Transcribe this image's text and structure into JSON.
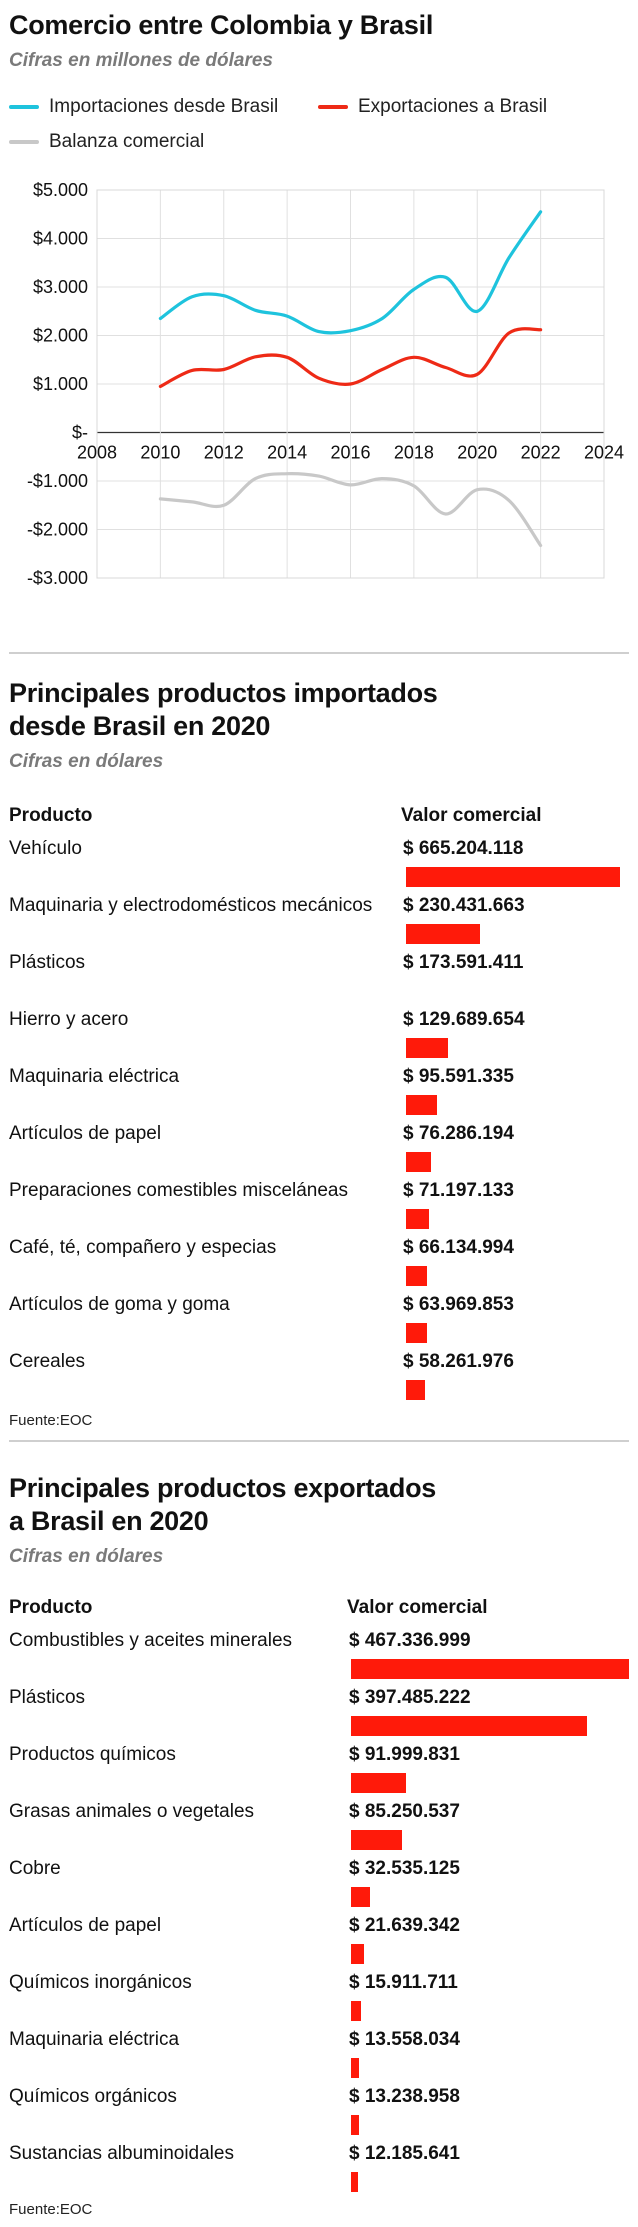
{
  "section1": {
    "title": "Comercio entre Colombia y Brasil",
    "subtitle": "Cifras en millones de dólares",
    "legend": [
      {
        "label": "Importaciones desde Brasil",
        "color": "#1ec3dd"
      },
      {
        "label": "Exportaciones a Brasil",
        "color": "#ee2a16"
      },
      {
        "label": "Balanza comercial",
        "color": "#c8c8c8"
      }
    ]
  },
  "chart_data": [
    {
      "type": "line",
      "title": "Comercio entre Colombia y Brasil",
      "subtitle": "Cifras en millones de dólares",
      "xlabel": "",
      "ylabel": "",
      "xlim": [
        2008,
        2024
      ],
      "ylim": [
        -3000,
        5000
      ],
      "x_ticks": [
        "2008",
        "2010",
        "2012",
        "2014",
        "2016",
        "2018",
        "2020",
        "2022",
        "2024"
      ],
      "y_ticks": [
        "$5.000",
        "$4.000",
        "$3.000",
        "$2.000",
        "$1.000",
        "$-",
        "-$1.000",
        "-$2.000",
        "-$3.000"
      ],
      "grid": true,
      "legend_position": "top",
      "x": [
        2010,
        2011,
        2012,
        2013,
        2014,
        2015,
        2016,
        2017,
        2018,
        2019,
        2020,
        2021,
        2022
      ],
      "series": [
        {
          "name": "Importaciones desde Brasil",
          "color": "#1ec3dd",
          "values": [
            2350,
            2800,
            2820,
            2520,
            2400,
            2080,
            2100,
            2350,
            2950,
            3200,
            2500,
            3600,
            4550
          ]
        },
        {
          "name": "Exportaciones a Brasil",
          "color": "#ee2a16",
          "values": [
            950,
            1280,
            1300,
            1560,
            1550,
            1120,
            1000,
            1300,
            1550,
            1340,
            1200,
            2050,
            2120
          ]
        },
        {
          "name": "Balanza comercial",
          "color": "#c8c8c8",
          "values": [
            -1370,
            -1430,
            -1500,
            -950,
            -850,
            -900,
            -1080,
            -950,
            -1100,
            -1680,
            -1180,
            -1400,
            -2330
          ]
        }
      ]
    },
    {
      "type": "bar",
      "orientation": "horizontal",
      "title": "Principales productos importados desde Brasil en 2020",
      "subtitle": "Cifras en dólares",
      "categories": [
        "Vehículo",
        "Maquinaria y electrodomésticos mecánicos",
        "Plásticos",
        "Hierro y acero",
        "Maquinaria eléctrica",
        "Artículos de papel",
        "Preparaciones comestibles misceláneas",
        "Café, té, compañero y especias",
        "Artículos de goma y goma",
        "Cereales"
      ],
      "values": [
        665204118,
        230431663,
        173591411,
        129689654,
        95591335,
        76286194,
        71197133,
        66134994,
        63969853,
        58261976
      ],
      "value_labels": [
        "$ 665.204.118",
        "$ 230.431.663",
        "$ 173.591.411",
        "$ 129.689.654",
        "$ 95.591.335",
        "$ 76.286.194",
        "$ 71.197.133",
        "$ 66.134.994",
        "$ 63.969.853",
        "$ 58.261.976"
      ],
      "bar_shown": [
        true,
        true,
        false,
        true,
        true,
        true,
        true,
        true,
        true,
        true
      ],
      "color": "#ff1a0a"
    },
    {
      "type": "bar",
      "orientation": "horizontal",
      "title": "Principales productos exportados a Brasil en 2020",
      "subtitle": "Cifras en dólares",
      "categories": [
        "Combustibles y aceites minerales",
        "Plásticos",
        "Productos químicos",
        "Grasas animales o vegetales",
        "Cobre",
        "Artículos de papel",
        "Químicos inorgánicos",
        "Maquinaria eléctrica",
        "Químicos orgánicos",
        "Sustancias albuminoidales"
      ],
      "values": [
        467336999,
        397485222,
        91999831,
        85250537,
        32535125,
        21639342,
        15911711,
        13558034,
        13238958,
        12185641
      ],
      "value_labels": [
        "$ 467.336.999",
        "$ 397.485.222",
        "$ 91.999.831",
        "$ 85.250.537",
        "$ 32.535.125",
        "$ 21.639.342",
        "$ 15.911.711",
        "$ 13.558.034",
        "$ 13.238.958",
        "$ 12.185.641"
      ],
      "bar_shown": [
        true,
        true,
        true,
        true,
        true,
        true,
        true,
        true,
        true,
        true
      ],
      "color": "#ff1a0a"
    }
  ],
  "section2": {
    "title_line1": "Principales productos importados",
    "title_line2": "desde Brasil en 2020",
    "subtitle": "Cifras en dólares",
    "col_product": "Producto",
    "col_value": "Valor comercial",
    "source": "Fuente:EOC"
  },
  "section3": {
    "title_line1": "Principales productos exportados",
    "title_line2": "a Brasil en 2020",
    "subtitle": "Cifras en dólares",
    "col_product": "Producto",
    "col_value": "Valor comercial",
    "source": "Fuente:EOC"
  }
}
